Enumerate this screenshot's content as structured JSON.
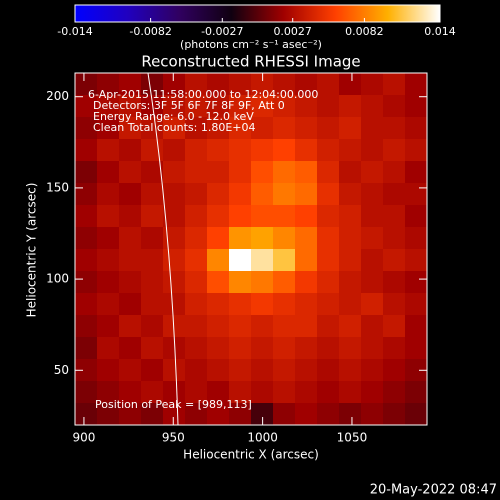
{
  "chart_data": {
    "type": "heatmap",
    "title": "Reconstructed RHESSI Image",
    "colorbar_label": "(photons cm⁻² s⁻¹ asec⁻²)",
    "clim": [
      -0.014,
      0.014
    ],
    "colorbar_ticks": [
      -0.014,
      -0.0082,
      -0.0027,
      0.0027,
      0.0082,
      0.014
    ],
    "colormap": [
      "#0000ff",
      "#2000c0",
      "#300060",
      "#100010",
      "#a00000",
      "#ff4000",
      "#ffb000",
      "#ffffff"
    ],
    "x_label": "Heliocentric X (arcsec)",
    "y_label": "Heliocentric Y (arcsec)",
    "xlim": [
      895,
      1092
    ],
    "ylim": [
      20,
      213
    ],
    "xticks": [
      900,
      950,
      1000,
      1050
    ],
    "yticks": [
      50,
      100,
      150,
      200
    ],
    "annotations": [
      "6-Apr-2015 11:58:00.000 to 12:04:00.000",
      "Detectors: 3F 5F 6F 7F 8F 9F, Att 0",
      "Energy Range: 6.0 - 12.0 keV",
      "Clean    Total counts: 1.80E+04"
    ],
    "peak_label": "Position of Peak = [989,113]",
    "timestamp": "20-May-2022 08:47",
    "z": [
      [
        0.001,
        0.0015,
        0.002,
        0.001,
        0.002,
        0.003,
        0.0025,
        0.003,
        0.0035,
        0.003,
        0.0025,
        0.003,
        0.002,
        0.0025,
        0.003,
        0.002
      ],
      [
        0.002,
        0.0025,
        0.003,
        0.002,
        0.003,
        0.0035,
        0.003,
        0.004,
        0.0045,
        0.004,
        0.0035,
        0.003,
        0.0035,
        0.003,
        0.0025,
        0.002
      ],
      [
        0.0015,
        0.002,
        0.0035,
        0.003,
        0.004,
        0.003,
        0.0035,
        0.0045,
        0.004,
        0.0045,
        0.004,
        0.0035,
        0.004,
        0.003,
        0.003,
        0.0025
      ],
      [
        0.002,
        0.003,
        0.0025,
        0.0035,
        0.003,
        0.004,
        0.0045,
        0.005,
        0.0055,
        0.006,
        0.005,
        0.004,
        0.0035,
        0.003,
        0.0035,
        0.003
      ],
      [
        0.001,
        0.002,
        0.003,
        0.0025,
        0.0035,
        0.004,
        0.004,
        0.005,
        0.0065,
        0.0075,
        0.007,
        0.0045,
        0.003,
        0.0035,
        0.003,
        0.002
      ],
      [
        0.0015,
        0.0025,
        0.002,
        0.003,
        0.003,
        0.0035,
        0.0045,
        0.0055,
        0.007,
        0.008,
        0.0075,
        0.005,
        0.0035,
        0.003,
        0.0025,
        0.0025
      ],
      [
        0.002,
        0.003,
        0.0025,
        0.0035,
        0.003,
        0.004,
        0.005,
        0.006,
        0.0065,
        0.0065,
        0.006,
        0.0045,
        0.004,
        0.003,
        0.003,
        0.002
      ],
      [
        0.0015,
        0.002,
        0.003,
        0.0025,
        0.0035,
        0.0045,
        0.006,
        0.009,
        0.0095,
        0.0085,
        0.0075,
        0.005,
        0.004,
        0.0035,
        0.003,
        0.0025
      ],
      [
        0.002,
        0.0025,
        0.003,
        0.003,
        0.004,
        0.005,
        0.0085,
        0.014,
        0.0125,
        0.011,
        0.0075,
        0.005,
        0.004,
        0.003,
        0.0035,
        0.003
      ],
      [
        0.0015,
        0.002,
        0.0025,
        0.003,
        0.0035,
        0.0045,
        0.0065,
        0.0085,
        0.008,
        0.007,
        0.0055,
        0.0045,
        0.0035,
        0.003,
        0.0025,
        0.002
      ],
      [
        0.002,
        0.0025,
        0.002,
        0.003,
        0.003,
        0.004,
        0.0045,
        0.005,
        0.0055,
        0.005,
        0.0045,
        0.004,
        0.0035,
        0.004,
        0.003,
        0.0025
      ],
      [
        0.0015,
        0.002,
        0.003,
        0.0025,
        0.0035,
        0.0035,
        0.004,
        0.0045,
        0.004,
        0.0045,
        0.0045,
        0.0035,
        0.004,
        0.003,
        0.0035,
        0.002
      ],
      [
        0.001,
        0.0025,
        0.002,
        0.003,
        0.0025,
        0.003,
        0.0035,
        0.004,
        0.0035,
        0.004,
        0.0035,
        0.003,
        0.0035,
        0.003,
        0.0025,
        0.002
      ],
      [
        0.0015,
        0.002,
        0.0025,
        0.002,
        0.003,
        0.0025,
        0.003,
        0.0035,
        0.003,
        0.0035,
        0.003,
        0.0025,
        0.003,
        0.0025,
        0.002,
        0.0015
      ],
      [
        0.001,
        0.0015,
        0.002,
        0.0025,
        0.002,
        0.0025,
        0.002,
        0.003,
        0.0025,
        0.003,
        0.0025,
        0.002,
        0.0025,
        0.002,
        0.0015,
        0.001
      ],
      [
        0.0005,
        0.001,
        0.0015,
        0.001,
        0.002,
        0.0015,
        0.002,
        0.0015,
        -0.0005,
        0.0015,
        0.002,
        0.0015,
        0.001,
        0.0015,
        0.001,
        0.0005
      ]
    ]
  }
}
